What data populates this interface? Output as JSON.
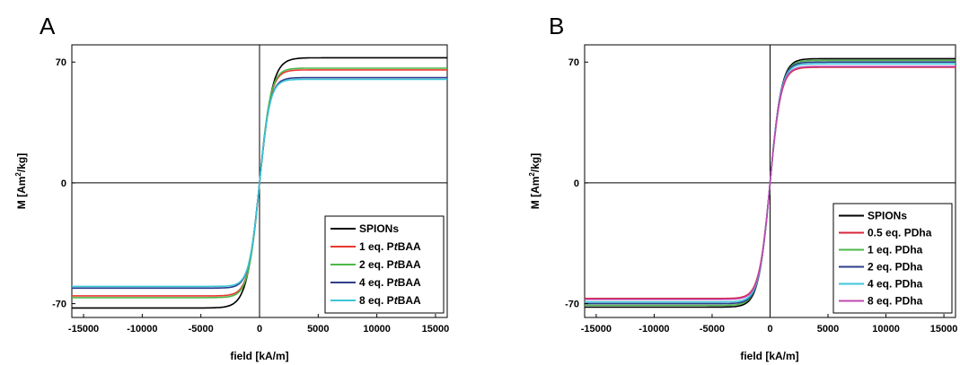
{
  "chart_data": [
    {
      "type": "line",
      "panel_label": "A",
      "xlabel": "field [kA/m]",
      "ylabel_main": "M [Am",
      "ylabel_sup": "2",
      "ylabel_tail": "/kg]",
      "xlim": [
        -16000,
        16000
      ],
      "ylim": [
        -78,
        80
      ],
      "xticks": [
        -15000,
        -10000,
        -5000,
        0,
        5000,
        10000,
        15000
      ],
      "xtick_labels": [
        "-15000",
        "-10000",
        "-5000",
        "0",
        "5000",
        "10000",
        "15000"
      ],
      "yticks": [
        70,
        0,
        -70
      ],
      "ytick_labels": [
        "70",
        "0",
        "-70"
      ],
      "grid": false,
      "legend_position": "bottom-right",
      "series": [
        {
          "name": "SPIONs",
          "name_main": "SPIONs",
          "name_italic": "",
          "name_tail": "",
          "color": "#000000",
          "ms": 72.5,
          "scale": 1100
        },
        {
          "name": "1 eq. PtBAA",
          "name_main": "1 eq. P",
          "name_italic": "t",
          "name_tail": "BAA",
          "color": "#e8392f",
          "ms": 65.5,
          "scale": 950
        },
        {
          "name": "2 eq. PtBAA",
          "name_main": "2 eq. P",
          "name_italic": "t",
          "name_tail": "BAA",
          "color": "#4cb848",
          "ms": 66.5,
          "scale": 950
        },
        {
          "name": "4 eq. PtBAA",
          "name_main": "4 eq. P",
          "name_italic": "t",
          "name_tail": "BAA",
          "color": "#2e3d8f",
          "ms": 61.0,
          "scale": 900
        },
        {
          "name": "8 eq. PtBAA",
          "name_main": "8 eq. P",
          "name_italic": "t",
          "name_tail": "BAA",
          "color": "#3cc6d8",
          "ms": 60.0,
          "scale": 880
        }
      ]
    },
    {
      "type": "line",
      "panel_label": "B",
      "xlabel": "field [kA/m]",
      "ylabel_main": "M [Am",
      "ylabel_sup": "2",
      "ylabel_tail": "/kg]",
      "xlim": [
        -16000,
        16000
      ],
      "ylim": [
        -78,
        80
      ],
      "xticks": [
        -15000,
        -10000,
        -5000,
        0,
        5000,
        10000,
        15000
      ],
      "xtick_labels": [
        "-15000",
        "-10000",
        "-5000",
        "0",
        "5000",
        "10000",
        "15000"
      ],
      "yticks": [
        70,
        0,
        -70
      ],
      "ytick_labels": [
        "70",
        "0",
        "-70"
      ],
      "grid": false,
      "legend_position": "bottom-right",
      "series": [
        {
          "name": "SPIONs",
          "name_main": "SPIONs",
          "name_italic": "",
          "name_tail": "",
          "color": "#000000",
          "ms": 72.0,
          "scale": 1000
        },
        {
          "name": "0.5 eq. PDha",
          "name_main": "0.5 eq. PDha",
          "name_italic": "",
          "name_tail": "",
          "color": "#d8253a",
          "ms": 67.0,
          "scale": 950
        },
        {
          "name": "1 eq. PDha",
          "name_main": "1 eq. PDha",
          "name_italic": "",
          "name_tail": "",
          "color": "#4cb848",
          "ms": 71.0,
          "scale": 1000
        },
        {
          "name": "2 eq. PDha",
          "name_main": "2 eq. PDha",
          "name_italic": "",
          "name_tail": "",
          "color": "#2e3d8f",
          "ms": 70.0,
          "scale": 960
        },
        {
          "name": "4 eq. PDha",
          "name_main": "4 eq. PDha",
          "name_italic": "",
          "name_tail": "",
          "color": "#3cc6d8",
          "ms": 69.0,
          "scale": 950
        },
        {
          "name": "8 eq. PDha",
          "name_main": "8 eq. PDha",
          "name_italic": "",
          "name_tail": "",
          "color": "#c04ab0",
          "ms": 67.5,
          "scale": 940
        }
      ]
    }
  ]
}
